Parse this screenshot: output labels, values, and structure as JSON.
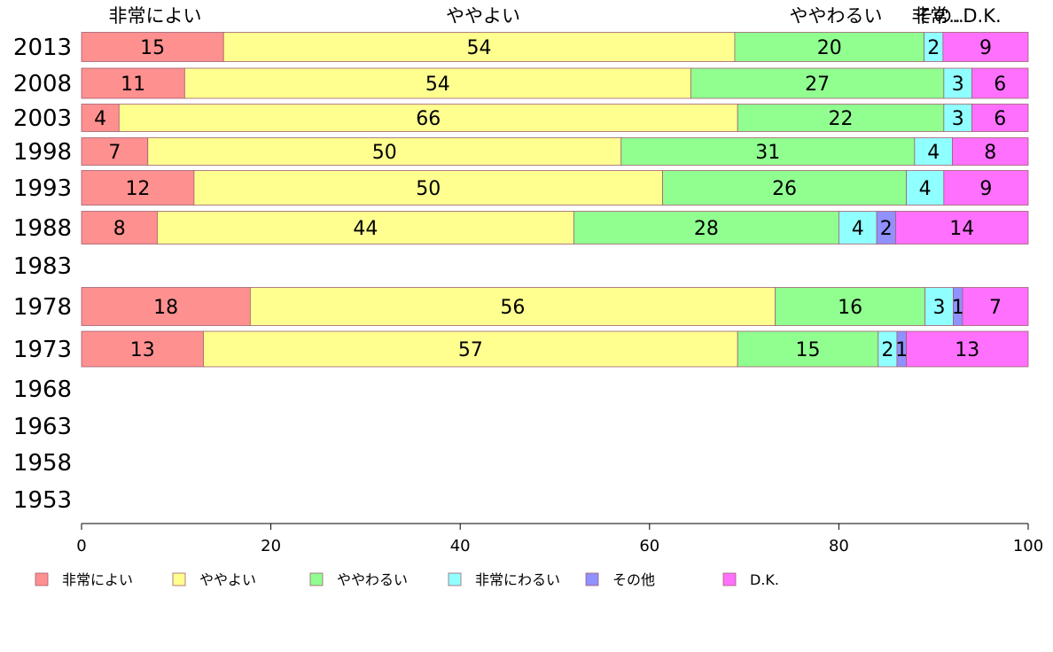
{
  "chart_data": {
    "type": "bar",
    "orientation": "horizontal",
    "stacked": true,
    "xlim": [
      0,
      100
    ],
    "x_ticks": [
      "0",
      "20",
      "40",
      "60",
      "80",
      "100"
    ],
    "categories": [
      "2013",
      "2008",
      "2003",
      "1998",
      "1993",
      "1988",
      "1983",
      "1978",
      "1973",
      "1968",
      "1963",
      "1958",
      "1953"
    ],
    "series": [
      {
        "name": "非常によい",
        "color": "#ff9090",
        "values": [
          15,
          11,
          4,
          7,
          12,
          8,
          null,
          18,
          13,
          null,
          null,
          null,
          null
        ]
      },
      {
        "name": "ややよい",
        "color": "#ffff90",
        "values": [
          54,
          54,
          66,
          50,
          50,
          44,
          null,
          56,
          57,
          null,
          null,
          null,
          null
        ]
      },
      {
        "name": "ややわるい",
        "color": "#90ff90",
        "values": [
          20,
          27,
          22,
          31,
          26,
          28,
          null,
          16,
          15,
          null,
          null,
          null,
          null
        ]
      },
      {
        "name": "非常にわるい",
        "color": "#90ffff",
        "values": [
          2,
          3,
          3,
          4,
          4,
          4,
          null,
          3,
          2,
          null,
          null,
          null,
          null
        ]
      },
      {
        "name": "その他",
        "color": "#9090ff",
        "values": [
          0,
          0,
          0,
          0,
          0,
          2,
          null,
          1,
          1,
          null,
          null,
          null,
          null
        ]
      },
      {
        "name": "D.K.",
        "color": "#ff70ff",
        "values": [
          9,
          6,
          6,
          8,
          9,
          14,
          null,
          7,
          13,
          null,
          null,
          null,
          null
        ]
      }
    ],
    "top_labels": [
      "非常によい",
      "ややよい",
      "ややわるい",
      "非常..",
      "その..",
      "D.K."
    ],
    "legend_position": "bottom",
    "grid": false
  }
}
